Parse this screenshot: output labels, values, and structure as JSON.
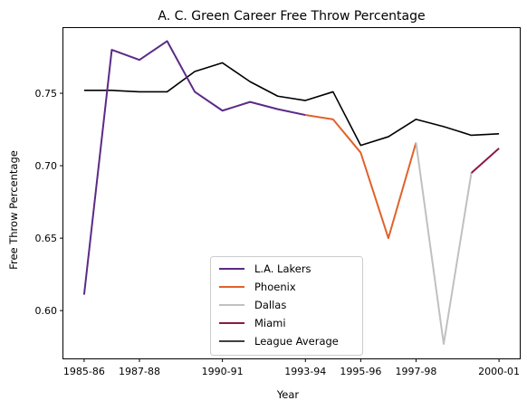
{
  "chart_data": {
    "type": "line",
    "title": "A. C. Green Career Free Throw Percentage",
    "xlabel": "Year",
    "ylabel": "Free Throw Percentage",
    "x": [
      "1985-86",
      "1986-87",
      "1987-88",
      "1988-89",
      "1989-90",
      "1990-91",
      "1991-92",
      "1992-93",
      "1993-94",
      "1994-95",
      "1995-96",
      "1996-97",
      "1997-98",
      "1998-99",
      "1999-00",
      "2000-01"
    ],
    "xticks": [
      "1985-86",
      "1987-88",
      "1990-91",
      "1993-94",
      "1995-96",
      "1997-98",
      "2000-01"
    ],
    "yticks": [
      "0.60",
      "0.65",
      "0.70",
      "0.75"
    ],
    "xlim": [
      -0.75,
      15.75
    ],
    "ylim": [
      0.567,
      0.795
    ],
    "grid": false,
    "legend_position": "lower center",
    "series": [
      {
        "name": "L.A. Lakers",
        "color": "#5b2a86",
        "x": [
          0,
          1,
          2,
          3,
          4,
          5,
          6,
          7,
          8
        ],
        "values": [
          0.611,
          0.78,
          0.773,
          0.786,
          0.751,
          0.738,
          0.744,
          0.739,
          0.735
        ]
      },
      {
        "name": "Phoenix",
        "color": "#e0622a",
        "x": [
          8,
          9,
          10,
          11,
          12
        ],
        "values": [
          0.735,
          0.732,
          0.709,
          0.65,
          0.716
        ]
      },
      {
        "name": "Dallas",
        "color": "#c0c0c0",
        "x": [
          12,
          13,
          14
        ],
        "values": [
          0.716,
          0.577,
          0.695
        ]
      },
      {
        "name": "Miami",
        "color": "#8b1a4a",
        "x": [
          14,
          15
        ],
        "values": [
          0.695,
          0.712
        ]
      },
      {
        "name": "League Average",
        "color": "#000000",
        "x": [
          0,
          1,
          2,
          3,
          4,
          5,
          6,
          7,
          8,
          9,
          10,
          11,
          12,
          13,
          14,
          15
        ],
        "values": [
          0.752,
          0.752,
          0.751,
          0.751,
          0.765,
          0.771,
          0.758,
          0.748,
          0.745,
          0.751,
          0.714,
          0.72,
          0.732,
          0.727,
          0.721,
          0.722
        ]
      }
    ],
    "draw_order": [
      "League Average",
      "L.A. Lakers",
      "Phoenix",
      "Dallas",
      "Miami"
    ]
  }
}
